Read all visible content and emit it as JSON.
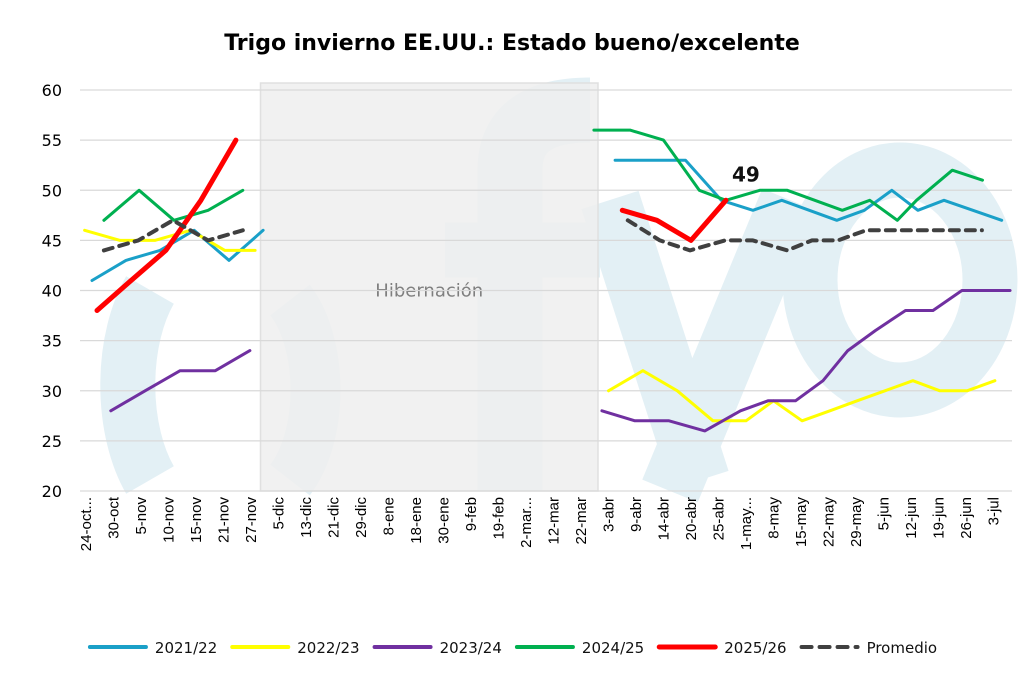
{
  "chart_data": {
    "type": "line",
    "title": "Trigo invierno EE.UU.: Estado bueno/excelente",
    "xlabel": "",
    "ylabel": "",
    "ylim": [
      20,
      60
    ],
    "yticks": [
      20,
      25,
      30,
      35,
      40,
      45,
      50,
      55,
      60
    ],
    "grid": true,
    "legend_position": "bottom",
    "categories": [
      "24-oct...",
      "30-oct",
      "5-nov",
      "10-nov",
      "15-nov",
      "21-nov",
      "27-nov",
      "5-dic",
      "13-dic",
      "21-dic",
      "29-dic",
      "8-ene",
      "18-ene",
      "30-ene",
      "9-feb",
      "19-feb",
      "2-mar...",
      "12-mar",
      "22-mar",
      "3-abr",
      "9-abr",
      "14-abr",
      "20-abr",
      "25-abr",
      "1-may...",
      "8-may",
      "15-may",
      "22-may",
      "29-may",
      "5-jun",
      "12-jun",
      "19-jun",
      "26-jun",
      "3-jul"
    ],
    "x_note": "point x values are positions in category-tick index units (0 = first tick label)",
    "shaded_region": {
      "label": "Hibernación",
      "from_category": "5-dic",
      "to_category": "22-mar"
    },
    "annotations": [
      {
        "text": "49",
        "series": "2025/26",
        "x": 23.27,
        "y": 49
      }
    ],
    "series": [
      {
        "name": "2021/22",
        "color": "#1aa0c8",
        "dash": false,
        "width": 3,
        "segments": [
          {
            "x": [
              0.22,
              1.45,
              2.69,
              3.93,
              5.2,
              6.44
            ],
            "y": [
              41,
              43,
              44,
              46,
              43,
              46
            ]
          },
          {
            "x": [
              19.24,
              20.5,
              21.8,
              23.1,
              24.25,
              25.3,
              26.3,
              27.3,
              28.3,
              29.3,
              30.25,
              31.2,
              32.25,
              33.3
            ],
            "y": [
              53,
              53,
              53,
              49,
              48,
              49,
              48,
              47,
              48,
              50,
              48,
              49,
              48,
              47
            ]
          }
        ]
      },
      {
        "name": "2022/23",
        "color": "#ffff00",
        "dash": false,
        "width": 3,
        "segments": [
          {
            "x": [
              -0.05,
              1.24,
              2.5,
              3.8,
              5.05,
              6.15
            ],
            "y": [
              46,
              45,
              45,
              46,
              44,
              44
            ]
          },
          {
            "x": [
              19.0,
              20.25,
              21.5,
              22.8,
              24.0,
              25.0,
              26.04,
              27.05,
              28.04,
              29.05,
              30.07,
              31.05,
              32.04,
              33.05
            ],
            "y": [
              30,
              32,
              30,
              27,
              27,
              29,
              27,
              28,
              29,
              30,
              31,
              30,
              30,
              31
            ]
          }
        ]
      },
      {
        "name": "2023/24",
        "color": "#7030a0",
        "dash": false,
        "width": 3,
        "segments": [
          {
            "x": [
              0.9,
              2.15,
              3.42,
              4.7,
              5.96
            ],
            "y": [
              28,
              30,
              32,
              32,
              34
            ]
          },
          {
            "x": [
              18.76,
              19.96,
              21.2,
              22.5,
              23.8,
              24.8,
              25.8,
              26.8,
              27.7,
              28.7,
              29.8,
              30.8,
              31.85,
              33.6
            ],
            "y": [
              28,
              27,
              27,
              26,
              28,
              29,
              29,
              31,
              34,
              36,
              38,
              38,
              40,
              40
            ]
          }
        ]
      },
      {
        "name": "2024/25",
        "color": "#00b050",
        "dash": false,
        "width": 3,
        "segments": [
          {
            "x": [
              0.65,
              1.93,
              3.2,
              4.44,
              5.7
            ],
            "y": [
              47,
              50,
              47,
              48,
              50
            ]
          },
          {
            "x": [
              18.47,
              19.78,
              21.0,
              22.3,
              23.27,
              24.5,
              25.5,
              26.5,
              27.5,
              28.5,
              29.5,
              30.2,
              31.5,
              32.6
            ],
            "y": [
              56,
              56,
              55,
              50,
              49,
              50,
              50,
              49,
              48,
              49,
              47,
              49,
              52,
              51
            ]
          }
        ]
      },
      {
        "name": "2025/26",
        "color": "#ff0000",
        "dash": false,
        "width": 5,
        "segments": [
          {
            "x": [
              0.4,
              1.64,
              2.9,
              4.18,
              5.45
            ],
            "y": [
              38,
              41,
              44,
              49,
              55
            ]
          },
          {
            "x": [
              19.5,
              20.76,
              22.0,
              23.27
            ],
            "y": [
              48,
              47,
              45,
              49
            ]
          }
        ]
      },
      {
        "name": "Promedio",
        "color": "#404040",
        "dash": true,
        "width": 4,
        "segments": [
          {
            "x": [
              0.65,
              1.9,
              3.16,
              4.44,
              5.7
            ],
            "y": [
              44,
              45,
              47,
              45,
              46
            ]
          },
          {
            "x": [
              19.7,
              20.87,
              21.96,
              23.24,
              24.25,
              25.5,
              26.4,
              27.35,
              28.36,
              29.35,
              30.33,
              31.35,
              32.58
            ],
            "y": [
              47,
              45,
              44,
              45,
              45,
              44,
              45,
              45,
              46,
              46,
              46,
              46,
              46
            ]
          }
        ]
      }
    ]
  }
}
